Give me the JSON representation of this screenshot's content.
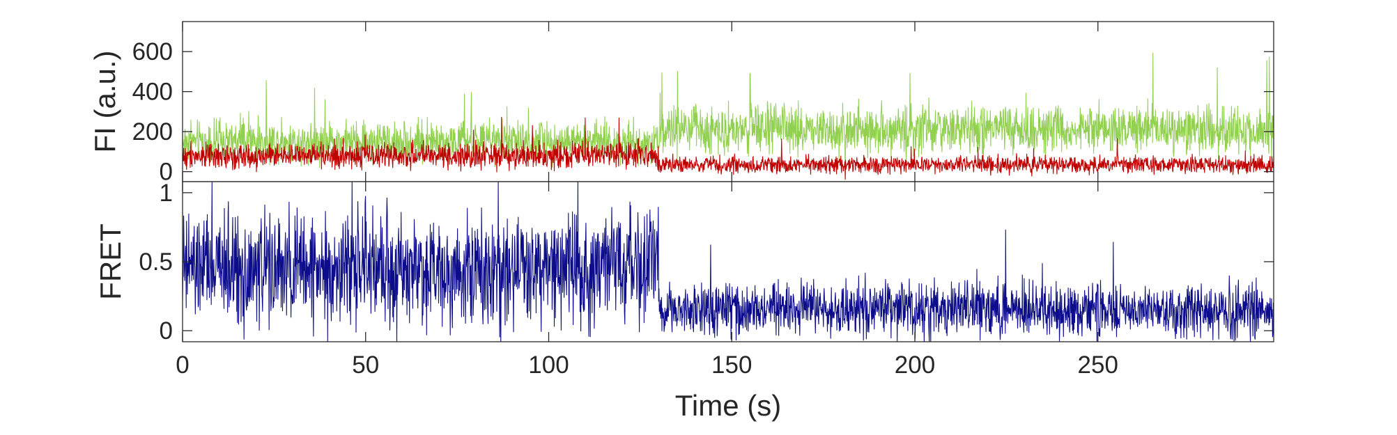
{
  "chart_data": [
    {
      "type": "line",
      "panel": "top",
      "ylabel": "FI (a.u.)",
      "xlabel": "",
      "xlim": [
        0,
        298
      ],
      "ylim": [
        -50,
        750
      ],
      "y_ticks": [
        0,
        200,
        400,
        600
      ],
      "y_tick_labels": [
        "0",
        "200",
        "400",
        "600"
      ],
      "grid": false,
      "series": [
        {
          "color": "#92d050",
          "segments": [
            {
              "x0": 0,
              "x1": 130,
              "mean": 150,
              "spread": 70
            },
            {
              "x0": 130,
              "x1": 298,
              "mean": 210,
              "spread": 85
            }
          ],
          "peaks": [
            {
              "x": 77,
              "y": 390
            },
            {
              "x": 155,
              "y": 490
            },
            {
              "x": 265,
              "y": 595
            },
            {
              "x": 181,
              "y": -40
            }
          ]
        },
        {
          "color": "#c00000",
          "segments": [
            {
              "x0": 0,
              "x1": 130,
              "mean": 80,
              "spread": 45
            },
            {
              "x0": 130,
              "x1": 298,
              "mean": 35,
              "spread": 30
            }
          ],
          "peaks": [
            {
              "x": 110,
              "y": 270
            },
            {
              "x": 181,
              "y": -40
            }
          ]
        }
      ]
    },
    {
      "type": "line",
      "panel": "bottom",
      "ylabel": "FRET",
      "xlabel": "Time (s)",
      "xlim": [
        0,
        298
      ],
      "ylim": [
        -0.08,
        1.08
      ],
      "y_ticks": [
        0,
        0.5,
        1
      ],
      "y_tick_labels": [
        "0",
        "0.5",
        "1"
      ],
      "x_ticks": [
        0,
        50,
        100,
        150,
        200,
        250
      ],
      "x_tick_labels": [
        "0",
        "50",
        "100",
        "150",
        "200",
        "250"
      ],
      "grid": false,
      "series": [
        {
          "color": "#0d0d8c",
          "segments": [
            {
              "x0": 0,
              "x1": 130,
              "mean": 0.45,
              "spread": 0.28
            },
            {
              "x0": 130,
              "x1": 298,
              "mean": 0.15,
              "spread": 0.14
            }
          ]
        }
      ]
    }
  ]
}
